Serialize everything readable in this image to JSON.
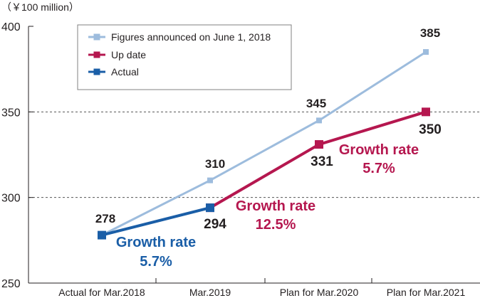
{
  "chart_data": {
    "type": "line",
    "unit_label": "（￥100 million）",
    "categories": [
      "Actual for Mar.2018",
      "Mar.2019",
      "Plan for Mar.2020",
      "Plan for Mar.2021"
    ],
    "ylim": [
      250,
      400
    ],
    "yticks": [
      250,
      300,
      350,
      400
    ],
    "dashed_gridlines": [
      300,
      350
    ],
    "legend_position": "top-left",
    "series": [
      {
        "name": "Figures announced on June 1, 2018",
        "color": "#9dbcdd",
        "values": [
          278,
          310,
          345,
          385
        ],
        "labels": [
          "",
          "310",
          "345",
          "385"
        ]
      },
      {
        "name": "Up date",
        "color": "#b5174f",
        "values": [
          null,
          294,
          331,
          350
        ],
        "labels": [
          "",
          "",
          "331",
          "350"
        ]
      },
      {
        "name": "Actual",
        "color": "#1a5ea7",
        "values": [
          278,
          294,
          null,
          null
        ],
        "labels": [
          "278",
          "294",
          "",
          ""
        ]
      }
    ],
    "annotations": [
      {
        "line1": "Growth rate",
        "line2": "5.7%",
        "color": "#1a5ea7"
      },
      {
        "line1": "Growth rate",
        "line2": "12.5%",
        "color": "#b5174f"
      },
      {
        "line1": "Growth rate",
        "line2": "5.7%",
        "color": "#b5174f"
      }
    ]
  }
}
